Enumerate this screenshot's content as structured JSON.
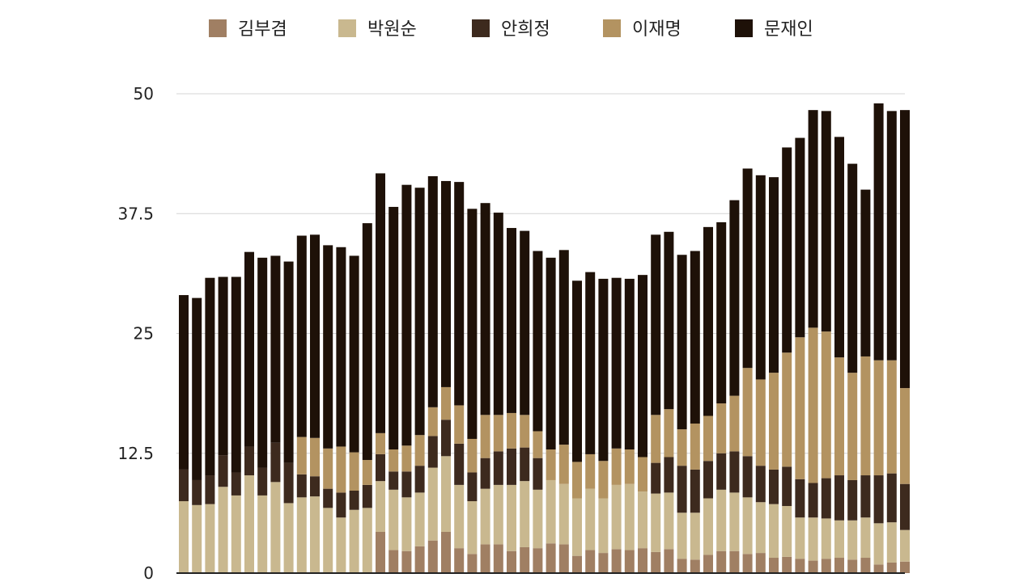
{
  "chart_data": {
    "type": "bar",
    "stacked": true,
    "grid": true,
    "legend_position": "top",
    "ylim": [
      0,
      50
    ],
    "y_ticks": [
      "0",
      "12.5",
      "25",
      "37.5",
      "50"
    ],
    "y_tick_values": [
      0,
      12.5,
      25,
      37.5,
      50
    ],
    "series": [
      {
        "name": "김부겸",
        "color": "#a07f63",
        "values": [
          0,
          0,
          0,
          0,
          0,
          0,
          0,
          0,
          0,
          0,
          0,
          0,
          0,
          0,
          0,
          4.3,
          2.4,
          2.3,
          2.8,
          3.4,
          4.3,
          2.6,
          2.0,
          3.0,
          3.0,
          2.3,
          2.7,
          2.6,
          3.1,
          3.0,
          1.8,
          2.4,
          2.1,
          2.5,
          2.4,
          2.6,
          2.2,
          2.5,
          1.5,
          1.4,
          1.9,
          2.3,
          2.3,
          2.0,
          2.1,
          1.6,
          1.7,
          1.5,
          1.3,
          1.5,
          1.6,
          1.4,
          1.6,
          0.9,
          1.1,
          1.2
        ]
      },
      {
        "name": "박원순",
        "color": "#c9b88f",
        "values": [
          7.5,
          7.1,
          7.2,
          9.0,
          8.1,
          10.2,
          8.1,
          9.5,
          7.3,
          7.9,
          8.0,
          6.8,
          5.8,
          6.6,
          6.8,
          5.3,
          6.3,
          5.6,
          5.6,
          7.6,
          7.9,
          6.6,
          5.5,
          5.8,
          6.2,
          6.9,
          6.9,
          6.1,
          6.6,
          6.3,
          6.0,
          6.4,
          5.7,
          6.7,
          6.9,
          5.9,
          6.1,
          5.9,
          4.8,
          4.9,
          5.9,
          6.4,
          6.1,
          5.9,
          5.3,
          5.6,
          5.3,
          4.3,
          4.5,
          4.2,
          3.9,
          4.1,
          4.2,
          4.3,
          4.2,
          3.3
        ]
      },
      {
        "name": "안희정",
        "color": "#3d2a1e",
        "values": [
          3.3,
          2.6,
          3.0,
          3.3,
          2.4,
          3.0,
          2.9,
          4.1,
          4.2,
          2.4,
          2.1,
          2.0,
          2.6,
          2.0,
          2.4,
          2.8,
          1.9,
          2.7,
          2.8,
          3.3,
          3.8,
          4.3,
          3.0,
          3.2,
          3.5,
          3.8,
          3.5,
          3.3,
          0,
          0,
          0,
          0,
          0,
          0,
          0,
          0,
          3.2,
          3.7,
          4.9,
          4.5,
          3.9,
          3.8,
          4.3,
          4.3,
          3.8,
          3.6,
          4.1,
          4.0,
          3.6,
          4.2,
          4.7,
          4.2,
          4.4,
          5.0,
          5.1,
          4.8
        ]
      },
      {
        "name": "이재명",
        "color": "#b39361",
        "values": [
          0,
          0,
          0,
          0,
          0,
          0,
          0,
          0,
          0,
          3.9,
          4.0,
          4.2,
          4.8,
          4.0,
          2.6,
          2.2,
          2.3,
          2.7,
          3.2,
          3.0,
          3.4,
          4.0,
          3.5,
          4.5,
          3.8,
          3.7,
          3.4,
          2.8,
          3.2,
          4.1,
          3.8,
          3.6,
          3.9,
          3.8,
          3.6,
          3.6,
          5.0,
          5.0,
          3.8,
          4.8,
          4.7,
          5.2,
          5.8,
          9.2,
          9.0,
          10.1,
          11.9,
          14.8,
          16.2,
          15.3,
          12.3,
          11.2,
          12.4,
          12.0,
          11.8,
          10.0
        ]
      },
      {
        "name": "문재인",
        "color": "#1e1108",
        "values": [
          18.2,
          19.0,
          20.6,
          18.6,
          20.4,
          20.3,
          21.9,
          19.5,
          21.0,
          21.0,
          21.2,
          21.2,
          20.8,
          20.5,
          24.7,
          27.1,
          25.3,
          27.2,
          25.8,
          24.1,
          21.5,
          23.3,
          24.0,
          22.1,
          21.1,
          19.3,
          19.2,
          18.8,
          20.0,
          20.3,
          18.9,
          19.0,
          19.0,
          17.8,
          17.8,
          19.0,
          18.8,
          18.5,
          18.2,
          18.0,
          19.7,
          18.9,
          20.4,
          20.8,
          21.3,
          20.4,
          21.4,
          20.8,
          22.7,
          23.0,
          23.0,
          21.8,
          17.4,
          26.8,
          26.0,
          29.0
        ]
      }
    ]
  }
}
